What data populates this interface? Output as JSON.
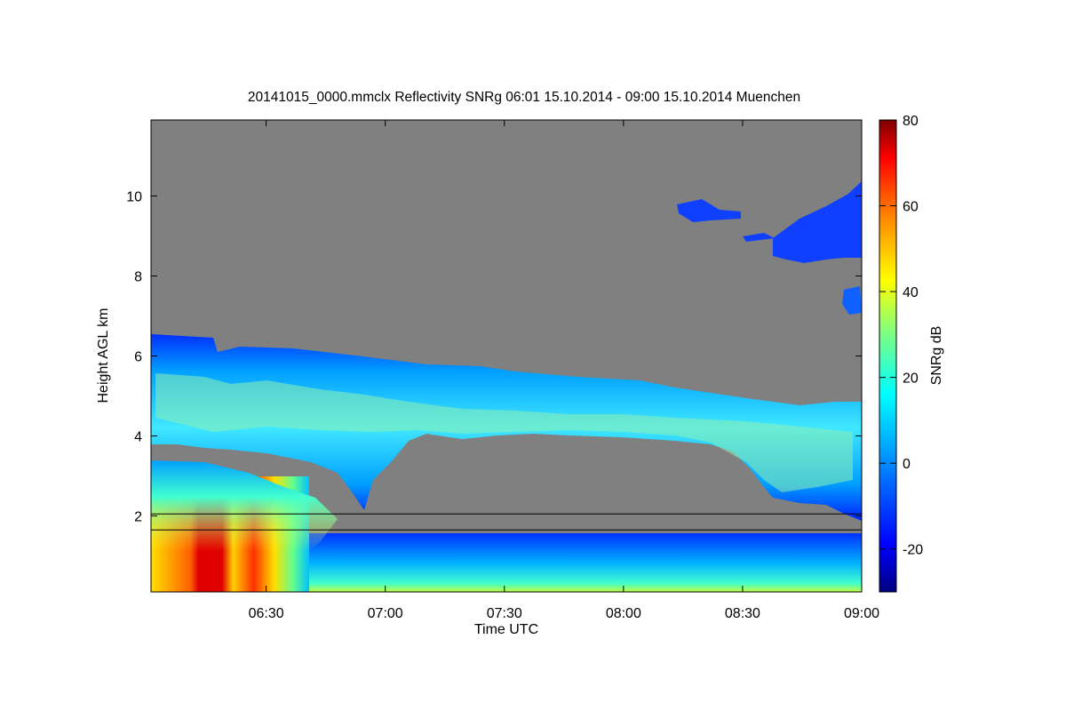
{
  "chart_data": {
    "type": "heatmap",
    "title": "20141015_0000.mmclx Reflectivity SNRg   06:01 15.10.2014 - 09:00 15.10.2014 Muenchen",
    "xlabel": "Time UTC",
    "ylabel": "Height AGL km",
    "x_ticks": [
      "06:30",
      "07:00",
      "07:30",
      "08:00",
      "08:30",
      "09:00"
    ],
    "y_ticks": [
      "2",
      "4",
      "6",
      "8",
      "10"
    ],
    "xlim": [
      "06:01",
      "09:00"
    ],
    "ylim": [
      0.1,
      11.9
    ],
    "colorbar": {
      "label": "SNRg dB",
      "ticks": [
        "80",
        "60",
        "40",
        "20",
        "0",
        "-20"
      ],
      "range": [
        -30,
        80
      ]
    },
    "background_color": "#808080",
    "features": [
      {
        "name": "ice cloud layer",
        "x_start": "06:01",
        "x_end": "09:00",
        "bottom_km": 3.8,
        "top_km": 6.6
      },
      {
        "name": "fog / low cloud",
        "x_start": "06:01",
        "x_end": "06:42",
        "bottom_km": 0.1,
        "top_km": 3.5
      },
      {
        "name": "cirrus patch",
        "x_start": "08:15",
        "x_end": "09:00",
        "bottom_km": 8.0,
        "top_km": 10.5
      },
      {
        "name": "boundary layer echoes",
        "x_start": "06:40",
        "x_end": "09:00",
        "bottom_km": 0.1,
        "top_km": 1.8
      }
    ],
    "lines": [
      {
        "name": "upper line",
        "y_km": 2.05
      },
      {
        "name": "lower line",
        "y_km": 1.65
      }
    ]
  }
}
